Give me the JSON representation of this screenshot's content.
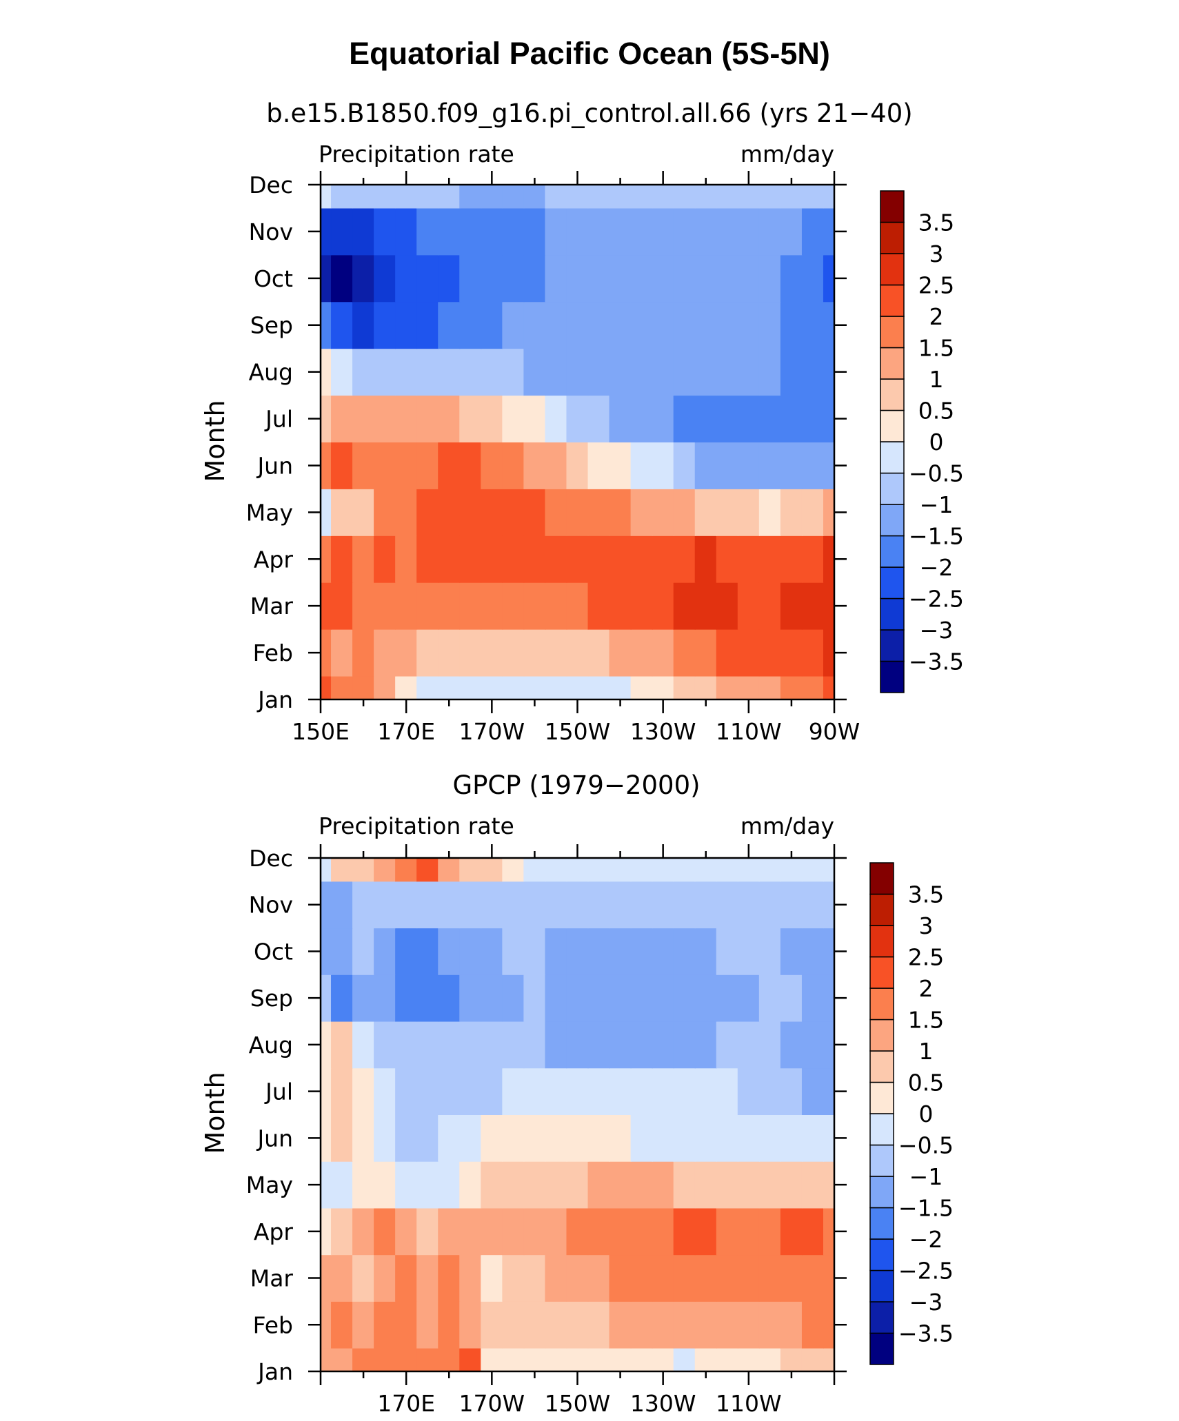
{
  "figure": {
    "title": "Equatorial Pacific Ocean (5S-5N)"
  },
  "colors": {
    "levels": [
      "-3.5",
      "-3",
      "-2.5",
      "-2",
      "-1.5",
      "-1",
      "-0.5",
      "0",
      "0.5",
      "1",
      "1.5",
      "2",
      "2.5",
      "3",
      "3.5"
    ],
    "palette": [
      "#000080",
      "#0c1fa8",
      "#0f3ad4",
      "#1f55ee",
      "#4a82f3",
      "#7fa7f7",
      "#aec8fb",
      "#d6e6fd",
      "#fee8d6",
      "#fcc9ad",
      "#fca580",
      "#fb7f4e",
      "#f85226",
      "#e23210",
      "#bd1e02",
      "#840000"
    ]
  },
  "chart_data": [
    {
      "type": "heatmap",
      "subtitle": "b.e15.B1850.f09_g16.pi_control.all.66 (yrs 21−40)",
      "left_label": "Precipitation rate",
      "right_label": "mm/day",
      "ylabel": "Month",
      "xlabel": "",
      "x_tick_labels": [
        "150E",
        "170E",
        "170W",
        "150W",
        "130W",
        "110W",
        "90W"
      ],
      "x_tick_values": [
        150,
        170,
        190,
        210,
        230,
        250,
        270
      ],
      "xlim": [
        150,
        270
      ],
      "y_tick_labels": [
        "Jan",
        "Feb",
        "Mar",
        "Apr",
        "May",
        "Jun",
        "Jul",
        "Aug",
        "Sep",
        "Oct",
        "Nov",
        "Dec"
      ],
      "colorbar_labels": [
        "3.5",
        "3",
        "2.5",
        "2",
        "1.5",
        "1",
        "0.5",
        "0",
        "−0.5",
        "−1",
        "−1.5",
        "−2",
        "−2.5",
        "−3",
        "−3.5"
      ],
      "x": [
        150,
        155,
        160,
        165,
        170,
        175,
        180,
        185,
        190,
        195,
        200,
        205,
        210,
        215,
        220,
        225,
        230,
        235,
        240,
        245,
        250,
        255,
        260,
        265,
        270
      ],
      "y": [
        "Jan",
        "Feb",
        "Mar",
        "Apr",
        "May",
        "Jun",
        "Jul",
        "Aug",
        "Sep",
        "Oct",
        "Nov",
        "Dec"
      ],
      "z": [
        [
          2,
          1.5,
          1.5,
          1,
          0,
          -0.3,
          -0.3,
          -0.3,
          -0.3,
          -0.3,
          -0.3,
          -0.3,
          -0.3,
          -0.2,
          -0.1,
          0.1,
          0.3,
          0.5,
          0.8,
          1,
          1.2,
          1.4,
          1.6,
          1.8,
          2
        ],
        [
          1.5,
          1,
          1.5,
          1.2,
          1,
          0.5,
          0.5,
          0.5,
          0.5,
          0.5,
          0.6,
          0.7,
          0.8,
          0.9,
          1,
          1.2,
          1.4,
          1.6,
          1.8,
          2,
          2,
          2.1,
          2.2,
          2.3,
          2.5
        ],
        [
          2,
          2,
          1.8,
          1.5,
          1.5,
          1.5,
          1.5,
          1.5,
          1.5,
          1.6,
          1.7,
          1.8,
          1.9,
          2,
          2.1,
          2.2,
          2.3,
          2.6,
          2.8,
          2.6,
          2.4,
          2.4,
          2.5,
          2.7,
          2.8
        ],
        [
          1.5,
          2,
          1.5,
          2,
          1.5,
          2,
          2.2,
          2.3,
          2.3,
          2.3,
          2.3,
          2.3,
          2.4,
          2.3,
          2.3,
          2.3,
          2.3,
          2.4,
          2.5,
          2.4,
          2.3,
          2.3,
          2.3,
          2.4,
          2.5
        ],
        [
          -0.3,
          0.5,
          0.8,
          1.5,
          1.8,
          2,
          2.2,
          2.2,
          2.2,
          2.1,
          2,
          1.8,
          1.7,
          1.6,
          1.5,
          1.4,
          1.2,
          1,
          0.8,
          0.6,
          0.5,
          0.4,
          0.5,
          0.8,
          1
        ],
        [
          1.5,
          2,
          1.8,
          1.5,
          1.8,
          1.8,
          2.2,
          2,
          1.8,
          1.5,
          1.2,
          1,
          0.7,
          0.4,
          0.1,
          -0.2,
          -0.5,
          -0.8,
          -1.1,
          -1.3,
          -1.5,
          -1.5,
          -1.5,
          -1.5,
          -1.5
        ],
        [
          0.8,
          1,
          1,
          1,
          1,
          1,
          1,
          0.8,
          0.6,
          0.3,
          0,
          -0.3,
          -0.6,
          -0.9,
          -1.1,
          -1.3,
          -1.5,
          -1.6,
          -1.6,
          -1.6,
          -1.6,
          -1.6,
          -1.6,
          -1.6,
          -1.8
        ],
        [
          0.3,
          -0.5,
          -1,
          -1,
          -1,
          -1,
          -1,
          -1,
          -1,
          -1,
          -1.1,
          -1.2,
          -1.3,
          -1.4,
          -1.5,
          -1.5,
          -1.5,
          -1.5,
          -1.5,
          -1.5,
          -1.5,
          -1.5,
          -1.6,
          -1.8,
          -2
        ],
        [
          -2,
          -2.5,
          -2.8,
          -2.5,
          -2.5,
          -2.5,
          -2,
          -2,
          -1.8,
          -1.5,
          -1.5,
          -1.5,
          -1.5,
          -1.5,
          -1.5,
          -1.5,
          -1.5,
          -1.5,
          -1.5,
          -1.5,
          -1.5,
          -1.5,
          -1.6,
          -1.8,
          -2
        ],
        [
          -3.5,
          -4,
          -3.5,
          -3,
          -2.5,
          -2.5,
          -2.2,
          -2,
          -1.8,
          -1.8,
          -1.6,
          -1.5,
          -1.5,
          -1.5,
          -1.5,
          -1.5,
          -1.5,
          -1.5,
          -1.5,
          -1.5,
          -1.5,
          -1.5,
          -1.6,
          -2,
          -2.2
        ],
        [
          -3,
          -3,
          -2.8,
          -2.5,
          -2.2,
          -2,
          -2,
          -1.8,
          -1.8,
          -1.7,
          -1.6,
          -1.5,
          -1.5,
          -1.5,
          -1.5,
          -1.5,
          -1.5,
          -1.5,
          -1.5,
          -1.5,
          -1.5,
          -1.5,
          -1.5,
          -1.7,
          -2
        ],
        [
          -0.5,
          -1,
          -1,
          -1,
          -1,
          -1,
          -1,
          -1.5,
          -1.5,
          -1.5,
          -1.2,
          -1,
          -1,
          -1,
          -1,
          -1,
          -1,
          -1,
          -1,
          -1,
          -1,
          -1,
          -1,
          -1,
          -1
        ]
      ]
    },
    {
      "type": "heatmap",
      "subtitle": "GPCP (1979−2000)",
      "left_label": "Precipitation rate",
      "right_label": "mm/day",
      "ylabel": "Month",
      "xlabel": "",
      "x_tick_labels": [
        "170E",
        "170W",
        "150W",
        "130W",
        "110W"
      ],
      "x_tick_values": [
        170,
        190,
        210,
        230,
        250
      ],
      "xlim": [
        150,
        270
      ],
      "y_tick_labels": [
        "Jan",
        "Feb",
        "Mar",
        "Apr",
        "May",
        "Jun",
        "Jul",
        "Aug",
        "Sep",
        "Oct",
        "Nov",
        "Dec"
      ],
      "colorbar_labels": [
        "3.5",
        "3",
        "2.5",
        "2",
        "1.5",
        "1",
        "0.5",
        "0",
        "−0.5",
        "−1",
        "−1.5",
        "−2",
        "−2.5",
        "−3",
        "−3.5"
      ],
      "x": [
        150,
        155,
        160,
        165,
        170,
        175,
        180,
        185,
        190,
        195,
        200,
        205,
        210,
        215,
        220,
        225,
        230,
        235,
        240,
        245,
        250,
        255,
        260,
        265,
        270
      ],
      "y": [
        "Jan",
        "Feb",
        "Mar",
        "Apr",
        "May",
        "Jun",
        "Jul",
        "Aug",
        "Sep",
        "Oct",
        "Nov",
        "Dec"
      ],
      "z": [
        [
          1,
          1,
          1.5,
          1.5,
          1.5,
          1.5,
          1.8,
          2,
          0.3,
          0.3,
          0.3,
          0.3,
          0.3,
          0.3,
          0.3,
          0.3,
          0.3,
          -0.1,
          0.3,
          0.3,
          0.3,
          0.4,
          0.5,
          0.6,
          0.8
        ],
        [
          1,
          1.5,
          1,
          1.5,
          1.5,
          1,
          1.5,
          1,
          0.5,
          0.5,
          0.5,
          0.6,
          0.8,
          0.9,
          1,
          1,
          1,
          1,
          1,
          1.1,
          1.2,
          1.3,
          1.4,
          1.5,
          1.5
        ],
        [
          1,
          1.2,
          0.8,
          1,
          1.5,
          1.2,
          1.5,
          1,
          0.4,
          0.5,
          0.8,
          1,
          1.2,
          1.3,
          1.5,
          1.5,
          1.6,
          1.7,
          1.8,
          1.6,
          1.5,
          1.6,
          1.8,
          1.9,
          1.8
        ],
        [
          0.3,
          0.8,
          1,
          1.5,
          1,
          0.8,
          1,
          1,
          1,
          1.2,
          1,
          1.2,
          1.5,
          1.7,
          1.8,
          1.8,
          1.8,
          2,
          2,
          1.7,
          1.6,
          1.8,
          2.1,
          2.1,
          1.8
        ],
        [
          -0.4,
          -0.3,
          0.3,
          0.3,
          -0.5,
          -0.5,
          -0.5,
          0.3,
          0.5,
          0.6,
          0.7,
          0.8,
          0.9,
          1,
          1,
          1,
          1,
          0.9,
          0.9,
          0.9,
          0.8,
          0.7,
          0.6,
          0.5,
          0.5
        ],
        [
          0.3,
          0.8,
          0.3,
          -0.5,
          -1,
          -1,
          -0.5,
          -0.2,
          0,
          0.2,
          0.3,
          0.3,
          0.2,
          0.1,
          0,
          -0.1,
          -0.3,
          -0.5,
          -0.5,
          -0.4,
          -0.3,
          -0.3,
          -0.4,
          -0.5,
          -0.5
        ],
        [
          0.3,
          0.8,
          0.3,
          -0.5,
          -1,
          -1,
          -1,
          -0.8,
          -0.6,
          -0.5,
          -0.5,
          -0.5,
          -0.5,
          -0.5,
          -0.5,
          -0.5,
          -0.5,
          -0.5,
          -0.5,
          -0.5,
          -0.6,
          -0.7,
          -1,
          -1.3,
          -1.2
        ],
        [
          0.3,
          0.5,
          -0.5,
          -1,
          -1,
          -1,
          -1,
          -1,
          -1,
          -1,
          -1,
          -1.2,
          -1.5,
          -1.5,
          -1.5,
          -1.5,
          -1.5,
          -1.5,
          -1.3,
          -1,
          -1,
          -1,
          -1.2,
          -1.5,
          -1.5
        ],
        [
          -1,
          -2,
          -1.5,
          -1.5,
          -1.8,
          -2,
          -2,
          -1.5,
          -1.5,
          -1.2,
          -1,
          -1.3,
          -1.5,
          -1.5,
          -1.5,
          -1.5,
          -1.5,
          -1.5,
          -1.5,
          -1.5,
          -1.2,
          -1,
          -1,
          -1.2,
          -1.2
        ],
        [
          -1.5,
          -1.5,
          -1,
          -1.5,
          -1.8,
          -1.8,
          -1.5,
          -1.5,
          -1.2,
          -1,
          -1,
          -1.2,
          -1.5,
          -1.5,
          -1.5,
          -1.5,
          -1.5,
          -1.3,
          -1.1,
          -1,
          -1,
          -1,
          -1.2,
          -1.5,
          -1.2
        ],
        [
          -1.2,
          -1.5,
          -1,
          -1,
          -1,
          -1,
          -1,
          -0.8,
          -0.7,
          -0.6,
          -0.6,
          -0.8,
          -0.8,
          -0.8,
          -0.7,
          -0.7,
          -0.8,
          -0.8,
          -0.8,
          -0.8,
          -0.8,
          -0.8,
          -0.8,
          -0.9,
          -1
        ],
        [
          -0.5,
          0.5,
          0.8,
          1,
          1.5,
          2,
          1.2,
          0.8,
          0.5,
          0.3,
          -0.3,
          -0.3,
          -0.3,
          -0.3,
          -0.3,
          -0.3,
          -0.3,
          -0.3,
          -0.3,
          -0.3,
          -0.3,
          -0.3,
          -0.3,
          -0.3,
          -0.3
        ]
      ]
    }
  ]
}
